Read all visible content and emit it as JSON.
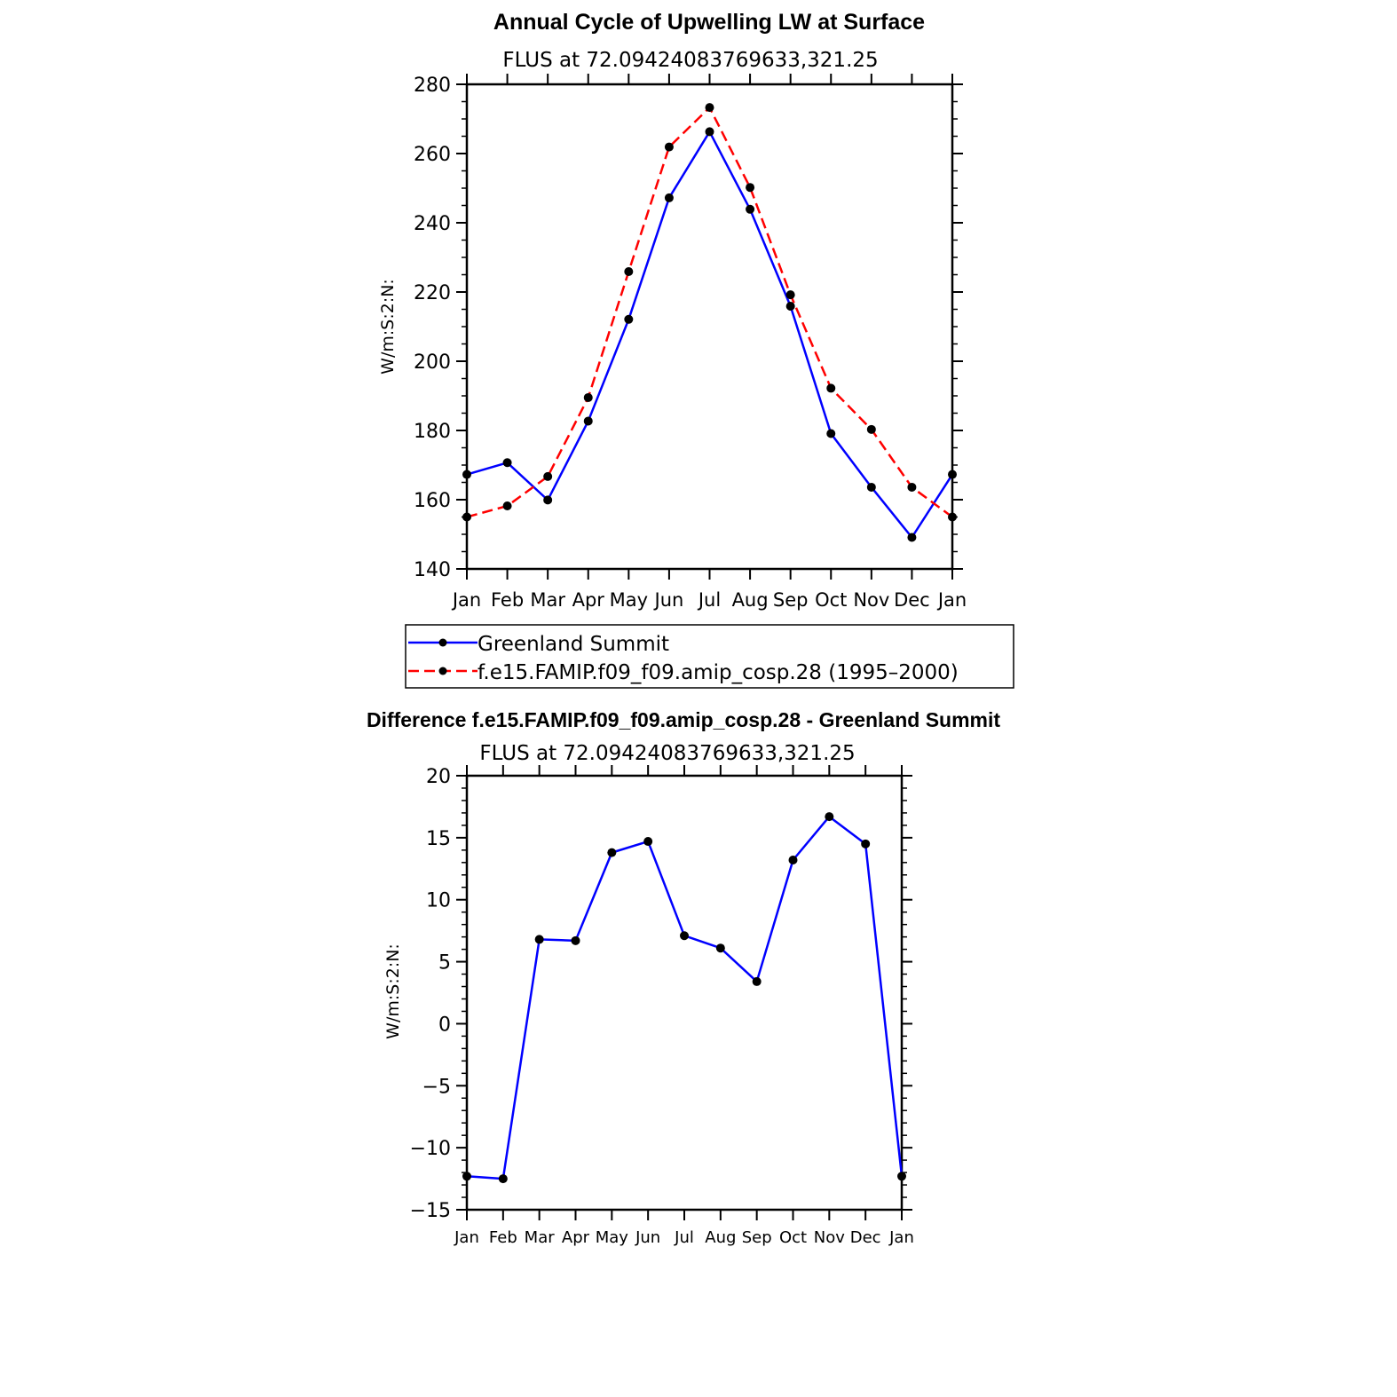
{
  "chart_data": [
    {
      "type": "line",
      "title": "Annual Cycle of Upwelling LW at Surface",
      "subtitle": "FLUS at 72.09424083769633,321.25",
      "ylabel": "W/m:S:2:N:",
      "xlabel": "",
      "ylim": [
        140,
        280
      ],
      "yticks": [
        "140",
        "160",
        "180",
        "200",
        "220",
        "240",
        "260",
        "280"
      ],
      "categories": [
        "Jan",
        "Feb",
        "Mar",
        "Apr",
        "May",
        "Jun",
        "Jul",
        "Aug",
        "Sep",
        "Oct",
        "Nov",
        "Dec",
        "Jan"
      ],
      "series": [
        {
          "name": "Greenland Summit",
          "color": "#0000ff",
          "dash": "solid",
          "values": [
            167.3,
            170.7,
            159.9,
            182.7,
            212.1,
            247.2,
            266.3,
            243.9,
            215.9,
            179.1,
            163.6,
            149.1,
            167.3
          ]
        },
        {
          "name": "f.e15.FAMIP.f09_f09.amip_cosp.28 (1995–2000)",
          "color": "#ff0000",
          "dash": "dashed",
          "values": [
            155.0,
            158.2,
            166.7,
            189.5,
            225.9,
            261.9,
            273.3,
            250.2,
            219.2,
            192.2,
            180.3,
            163.6,
            155.0
          ]
        }
      ],
      "legend": "below"
    },
    {
      "type": "line",
      "title": "Difference f.e15.FAMIP.f09_f09.amip_cosp.28 - Greenland Summit",
      "subtitle": "FLUS at 72.09424083769633,321.25",
      "ylabel": "W/m:S:2:N:",
      "xlabel": "",
      "ylim": [
        -15,
        20
      ],
      "yticks": [
        "−15",
        "−10",
        "−5",
        "0",
        "5",
        "10",
        "15",
        "20"
      ],
      "categories": [
        "Jan",
        "Feb",
        "Mar",
        "Apr",
        "May",
        "Jun",
        "Jul",
        "Aug",
        "Sep",
        "Oct",
        "Nov",
        "Dec",
        "Jan"
      ],
      "series": [
        {
          "name": "Difference",
          "color": "#0000ff",
          "dash": "solid",
          "values": [
            -12.3,
            -12.5,
            6.8,
            6.7,
            13.8,
            14.7,
            7.1,
            6.1,
            3.4,
            13.2,
            16.7,
            14.5,
            -12.3
          ]
        }
      ]
    }
  ]
}
